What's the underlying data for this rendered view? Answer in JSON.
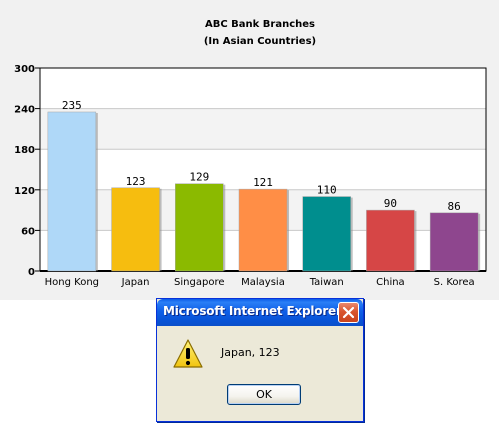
{
  "chart_data": {
    "type": "bar",
    "title": "ABC Bank Branches",
    "subtitle": "(In Asian Countries)",
    "categories": [
      "Hong Kong",
      "Japan",
      "Singapore",
      "Malaysia",
      "Taiwan",
      "China",
      "S. Korea"
    ],
    "values": [
      235,
      123,
      129,
      121,
      110,
      90,
      86
    ],
    "value_labels": [
      "235",
      "123",
      "129",
      "121",
      "110",
      "90",
      "86"
    ],
    "colors": [
      "#afd8f8",
      "#f6bd0f",
      "#8bba00",
      "#ff8e46",
      "#008e8e",
      "#d64646",
      "#8e468e"
    ],
    "ylim": [
      0,
      300
    ],
    "yticks": [
      0,
      60,
      120,
      180,
      240,
      300
    ],
    "ytick_labels": [
      "0",
      "60",
      "120",
      "180",
      "240",
      "300"
    ],
    "xlabel": "",
    "ylabel": "",
    "grid": true,
    "legend": "none"
  },
  "dialog": {
    "title": "Microsoft Internet Explorer",
    "message": "Japan, 123",
    "ok_label": "OK",
    "icon": "warning-icon",
    "close_icon": "close-icon"
  }
}
